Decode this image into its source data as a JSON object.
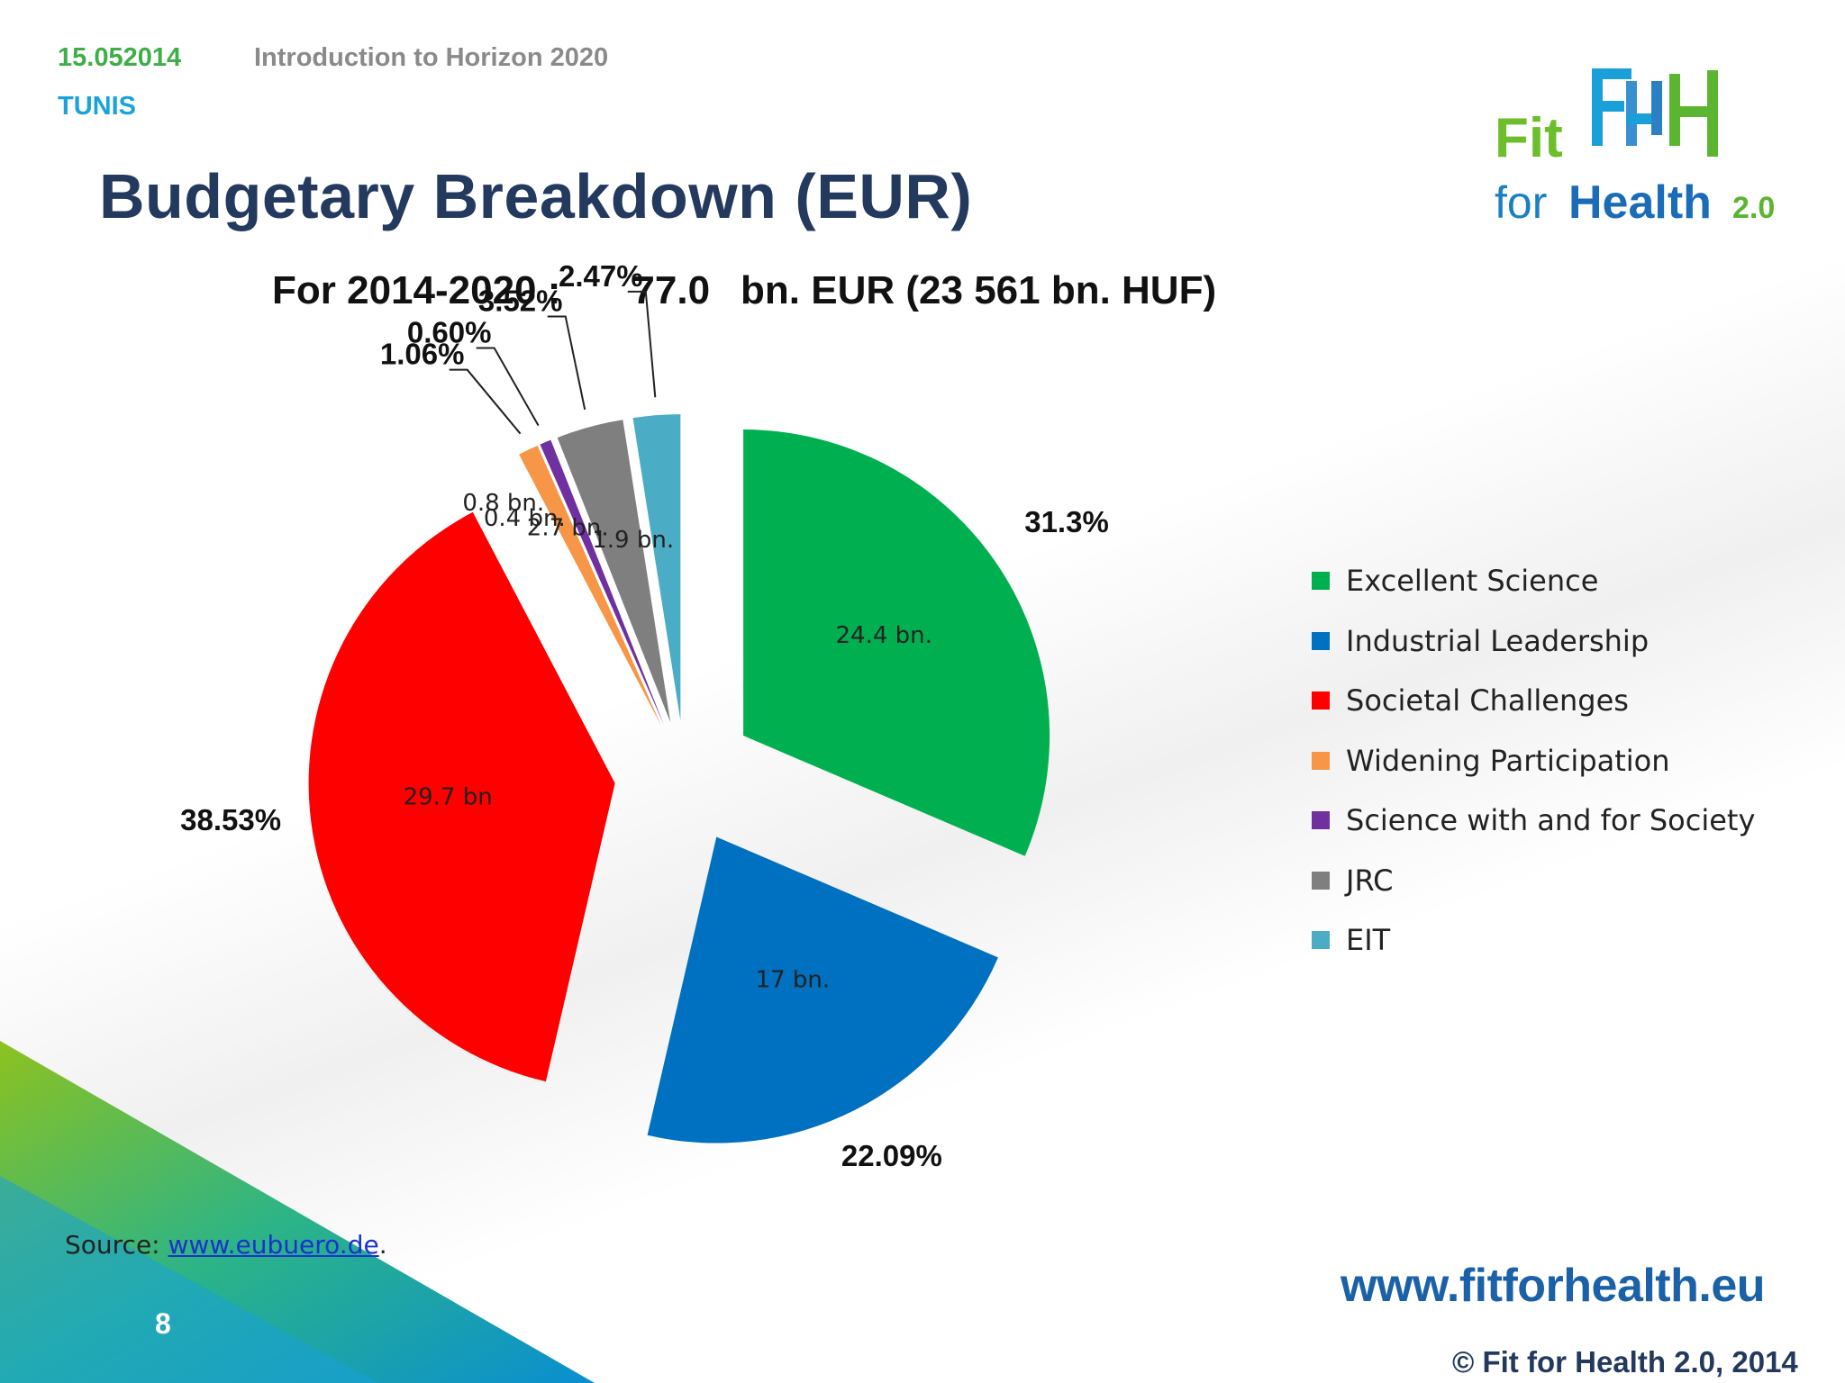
{
  "header": {
    "date": "15.052014",
    "event": "Introduction to Horizon 2020",
    "city": "TUNIS"
  },
  "logo": {
    "line1": "Fit",
    "line2_prefix": "for",
    "line2_main": "Health",
    "line2_version": "2.0"
  },
  "title": "Budgetary Breakdown (EUR)",
  "subtitle": {
    "period": "For 2014-2020 :",
    "amount": "77.0",
    "unit": "bn. EUR (23 561 bn. HUF)"
  },
  "chart_data": {
    "type": "pie",
    "slices": [
      {
        "name": "Excellent Science",
        "percent": 31.3,
        "percent_label": "31.3%",
        "value_label": "24.4 bn.",
        "color": "#00b050"
      },
      {
        "name": "Industrial Leadership",
        "percent": 22.09,
        "percent_label": "22.09%",
        "value_label": "17 bn.",
        "color": "#0070c0"
      },
      {
        "name": "Societal Challenges",
        "percent": 38.53,
        "percent_label": "38.53%",
        "value_label": "29.7 bn",
        "color": "#ff0000"
      },
      {
        "name": "Widening Participation",
        "percent": 1.06,
        "percent_label": "1.06%",
        "value_label": "0.8 bn.",
        "color": "#f79646"
      },
      {
        "name": "Science with and for Society",
        "percent": 0.6,
        "percent_label": "0.60%",
        "value_label": "0.4 bn.",
        "color": "#7030a0"
      },
      {
        "name": "JRC",
        "percent": 3.52,
        "percent_label": "3.52%",
        "value_label": "2.7 bn.",
        "color": "#7f7f7f"
      },
      {
        "name": "EIT",
        "percent": 2.47,
        "percent_label": "2.47%",
        "value_label": "1.9 bn.",
        "color": "#4bacc6"
      }
    ],
    "legend_position": "right"
  },
  "footer": {
    "source_prefix": "Source: ",
    "source_link": "www.eubuero.de",
    "source_suffix": ".",
    "page_number": "8",
    "website": "www.fitforhealth.eu",
    "copyright": "© Fit for Health 2.0, 2014"
  }
}
